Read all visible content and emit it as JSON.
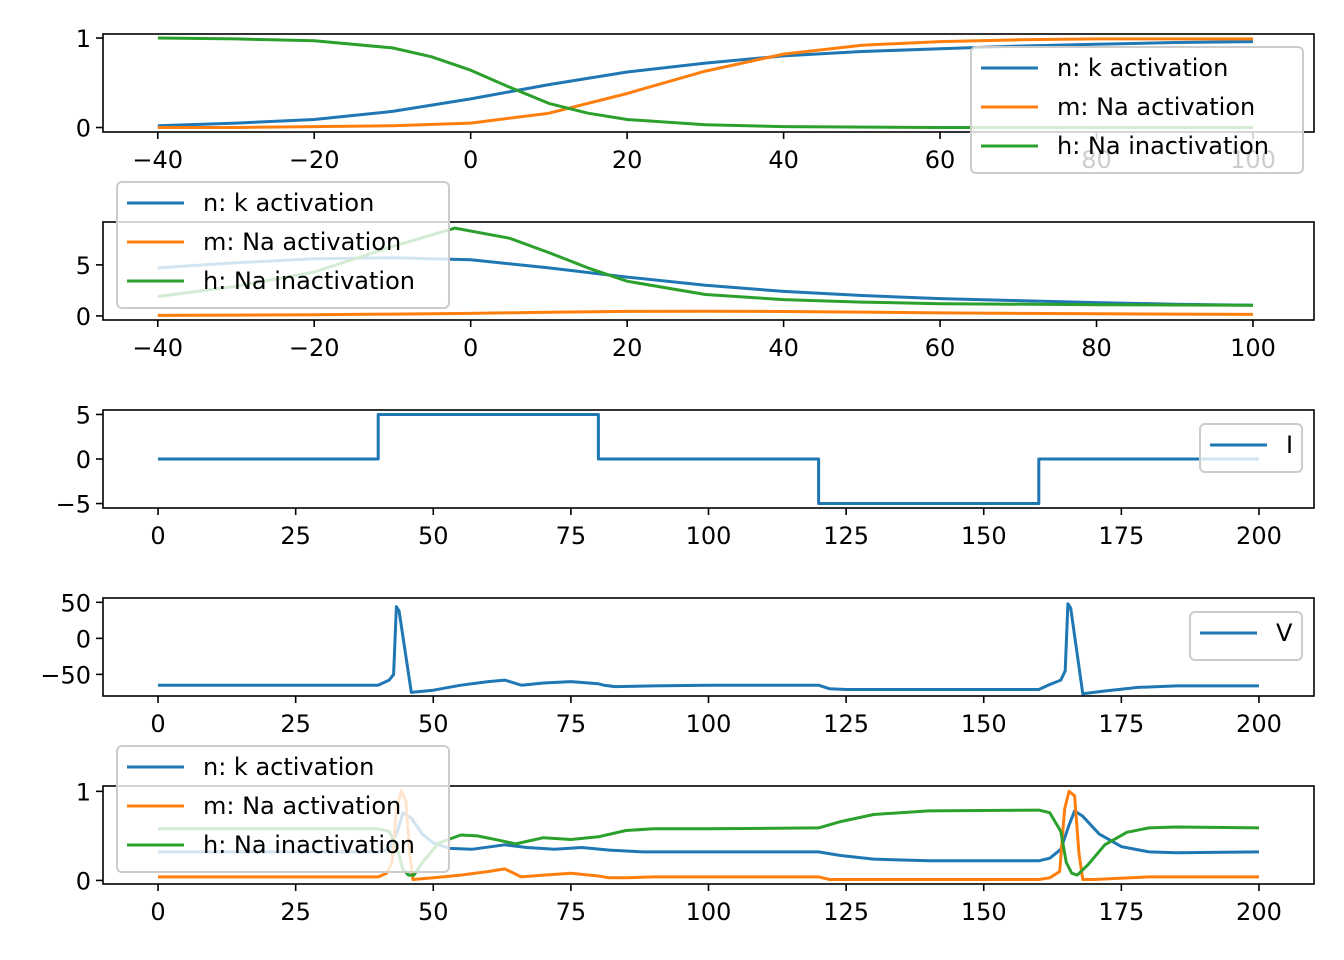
{
  "colors": {
    "n": "#1f77b4",
    "m": "#ff7f0e",
    "h": "#2ca02c",
    "axis": "#000000",
    "legend_border": "#cccccc"
  },
  "chart_data": [
    {
      "id": "steady_state",
      "type": "line",
      "title": "",
      "xlabel": "",
      "ylabel": "",
      "xlim": [
        -47,
        107.8
      ],
      "ylim": [
        -0.05,
        1.045
      ],
      "xticks": [
        -40,
        -20,
        0,
        20,
        40,
        60,
        80,
        100
      ],
      "xtick_labels": [
        "−40",
        "−20",
        "0",
        "20",
        "40",
        "60",
        "80",
        "100"
      ],
      "yticks": [
        0,
        1
      ],
      "ytick_labels": [
        "0",
        "1"
      ],
      "grid": false,
      "legend": {
        "placement": "right",
        "entries": [
          "n: k activation",
          "m: Na activation",
          "h: Na inactivation"
        ]
      },
      "series": [
        {
          "name": "n: k activation",
          "key": "n",
          "x": [
            -40,
            -30,
            -20,
            -10,
            0,
            10,
            20,
            30,
            40,
            50,
            60,
            70,
            80,
            90,
            100
          ],
          "y": [
            0.02,
            0.05,
            0.09,
            0.18,
            0.32,
            0.48,
            0.62,
            0.72,
            0.8,
            0.85,
            0.88,
            0.91,
            0.93,
            0.95,
            0.96
          ]
        },
        {
          "name": "m: Na activation",
          "key": "m",
          "x": [
            -40,
            -30,
            -20,
            -10,
            0,
            10,
            20,
            30,
            40,
            50,
            60,
            70,
            80,
            90,
            100
          ],
          "y": [
            0.0,
            0.0,
            0.01,
            0.02,
            0.05,
            0.16,
            0.38,
            0.63,
            0.82,
            0.92,
            0.96,
            0.98,
            0.99,
            0.99,
            0.99
          ]
        },
        {
          "name": "h: Na inactivation",
          "key": "h",
          "x": [
            -40,
            -30,
            -20,
            -10,
            -5,
            0,
            5,
            10,
            15,
            20,
            30,
            40,
            60,
            80,
            100
          ],
          "y": [
            1.0,
            0.99,
            0.97,
            0.89,
            0.79,
            0.64,
            0.45,
            0.27,
            0.16,
            0.09,
            0.03,
            0.01,
            0.0,
            0.0,
            0.0
          ]
        }
      ]
    },
    {
      "id": "time_constants",
      "type": "line",
      "title": "",
      "xlabel": "",
      "ylabel": "",
      "xlim": [
        -47,
        107.8
      ],
      "ylim": [
        -0.4,
        9.2
      ],
      "xticks": [
        -40,
        -20,
        0,
        20,
        40,
        60,
        80,
        100
      ],
      "xtick_labels": [
        "−40",
        "−20",
        "0",
        "20",
        "40",
        "60",
        "80",
        "100"
      ],
      "yticks": [
        0,
        5
      ],
      "ytick_labels": [
        "0",
        "5"
      ],
      "grid": false,
      "legend": {
        "placement": "upper-left",
        "entries": [
          "n: k activation",
          "m: Na activation",
          "h: Na inactivation"
        ]
      },
      "series": [
        {
          "name": "n: k activation",
          "key": "n",
          "x": [
            -40,
            -30,
            -20,
            -10,
            0,
            10,
            20,
            30,
            40,
            50,
            60,
            70,
            80,
            90,
            100
          ],
          "y": [
            4.7,
            5.2,
            5.6,
            5.7,
            5.5,
            4.7,
            3.8,
            3.0,
            2.4,
            2.0,
            1.7,
            1.5,
            1.3,
            1.15,
            1.05
          ]
        },
        {
          "name": "m: Na activation",
          "key": "m",
          "x": [
            -40,
            -30,
            -20,
            -10,
            0,
            10,
            20,
            30,
            40,
            50,
            60,
            70,
            80,
            90,
            100
          ],
          "y": [
            0.05,
            0.08,
            0.12,
            0.18,
            0.25,
            0.36,
            0.44,
            0.46,
            0.43,
            0.37,
            0.3,
            0.25,
            0.21,
            0.18,
            0.15
          ]
        },
        {
          "name": "h: Na inactivation",
          "key": "h",
          "x": [
            -40,
            -30,
            -20,
            -10,
            -2,
            5,
            10,
            15,
            20,
            30,
            40,
            50,
            60,
            80,
            100
          ],
          "y": [
            1.9,
            2.9,
            4.3,
            6.8,
            8.6,
            7.6,
            6.2,
            4.7,
            3.4,
            2.1,
            1.6,
            1.35,
            1.2,
            1.1,
            1.05
          ]
        }
      ]
    },
    {
      "id": "current",
      "type": "line",
      "title": "",
      "xlabel": "",
      "ylabel": "",
      "xlim": [
        -10,
        210
      ],
      "ylim": [
        -5.5,
        5.5
      ],
      "xticks": [
        0,
        25,
        50,
        75,
        100,
        125,
        150,
        175,
        200
      ],
      "xtick_labels": [
        "0",
        "25",
        "50",
        "75",
        "100",
        "125",
        "150",
        "175",
        "200"
      ],
      "yticks": [
        -5,
        0,
        5
      ],
      "ytick_labels": [
        "−5",
        "0",
        "5"
      ],
      "grid": false,
      "legend": {
        "placement": "right",
        "entries": [
          "I"
        ]
      },
      "series": [
        {
          "name": "I",
          "key": "n",
          "x": [
            0,
            40,
            40,
            80,
            80,
            120,
            120,
            160,
            160,
            200
          ],
          "y": [
            0,
            0,
            5,
            5,
            0,
            0,
            -5,
            -5,
            0,
            0
          ]
        }
      ]
    },
    {
      "id": "voltage",
      "type": "line",
      "title": "",
      "xlabel": "",
      "ylabel": "",
      "xlim": [
        -10,
        210
      ],
      "ylim": [
        -80,
        56
      ],
      "xticks": [
        0,
        25,
        50,
        75,
        100,
        125,
        150,
        175,
        200
      ],
      "xtick_labels": [
        "0",
        "25",
        "50",
        "75",
        "100",
        "125",
        "150",
        "175",
        "200"
      ],
      "yticks": [
        -50,
        0,
        50
      ],
      "ytick_labels": [
        "−50",
        "0",
        "50"
      ],
      "grid": false,
      "legend": {
        "placement": "right",
        "entries": [
          "V"
        ]
      },
      "series": [
        {
          "name": "V",
          "key": "n",
          "x": [
            0,
            40,
            42,
            42.8,
            43.3,
            43.8,
            46,
            50,
            55,
            60,
            63,
            66,
            70,
            75,
            80,
            81,
            83,
            90,
            100,
            120,
            122,
            125,
            140,
            160,
            162,
            164,
            164.8,
            165.3,
            165.8,
            168,
            172,
            178,
            185,
            200
          ],
          "y": [
            -65,
            -65,
            -58,
            -50,
            44,
            38,
            -75,
            -72,
            -65,
            -60,
            -58,
            -65,
            -62,
            -60,
            -63,
            -65,
            -67,
            -66,
            -65,
            -65,
            -70,
            -71,
            -71,
            -71,
            -64,
            -58,
            -45,
            48,
            42,
            -77,
            -73,
            -68,
            -66,
            -66
          ]
        }
      ]
    },
    {
      "id": "gating_timecourse",
      "type": "line",
      "title": "",
      "xlabel": "",
      "ylabel": "",
      "xlim": [
        -10,
        210
      ],
      "ylim": [
        -0.04,
        1.06
      ],
      "xticks": [
        0,
        25,
        50,
        75,
        100,
        125,
        150,
        175,
        200
      ],
      "xtick_labels": [
        "0",
        "25",
        "50",
        "75",
        "100",
        "125",
        "150",
        "175",
        "200"
      ],
      "yticks": [
        0,
        1
      ],
      "ytick_labels": [
        "0",
        "1"
      ],
      "grid": false,
      "legend": {
        "placement": "upper-left",
        "entries": [
          "n: k activation",
          "m: Na activation",
          "h: Na inactivation"
        ]
      },
      "series": [
        {
          "name": "n: k activation",
          "key": "n",
          "x": [
            0,
            40,
            42,
            43.5,
            44.5,
            46,
            48,
            50,
            53,
            57,
            63,
            67,
            72,
            77,
            82,
            88,
            100,
            120,
            124,
            130,
            140,
            160,
            162,
            164,
            165.5,
            166.5,
            168,
            171,
            175,
            180,
            185,
            200
          ],
          "y": [
            0.32,
            0.32,
            0.35,
            0.55,
            0.76,
            0.7,
            0.52,
            0.42,
            0.36,
            0.35,
            0.4,
            0.37,
            0.35,
            0.37,
            0.34,
            0.32,
            0.32,
            0.32,
            0.28,
            0.24,
            0.22,
            0.22,
            0.25,
            0.35,
            0.62,
            0.78,
            0.72,
            0.52,
            0.38,
            0.32,
            0.31,
            0.32
          ]
        },
        {
          "name": "m: Na activation",
          "key": "m",
          "x": [
            0,
            40,
            41.5,
            42.5,
            43.3,
            44.2,
            45,
            45.8,
            46.3,
            50,
            55,
            60,
            63,
            66,
            70,
            75,
            80,
            82,
            85,
            90,
            100,
            120,
            122,
            125,
            160,
            162,
            163.8,
            164.7,
            165.5,
            166.5,
            167.3,
            168,
            170,
            180,
            200
          ],
          "y": [
            0.04,
            0.04,
            0.08,
            0.2,
            0.8,
            1.0,
            0.9,
            0.25,
            0.01,
            0.03,
            0.06,
            0.1,
            0.13,
            0.04,
            0.06,
            0.08,
            0.05,
            0.03,
            0.03,
            0.04,
            0.04,
            0.04,
            0.01,
            0.01,
            0.01,
            0.03,
            0.1,
            0.8,
            1.0,
            0.95,
            0.3,
            0.01,
            0.01,
            0.04,
            0.04
          ]
        },
        {
          "name": "h: Na inactivation",
          "key": "h",
          "x": [
            0,
            40,
            42,
            43.5,
            44.5,
            45.5,
            46.5,
            48,
            51,
            55,
            58,
            62,
            65,
            70,
            75,
            80,
            85,
            90,
            100,
            120,
            124,
            130,
            140,
            160,
            162,
            164,
            165,
            166,
            167,
            169,
            172,
            176,
            180,
            185,
            200
          ],
          "y": [
            0.58,
            0.58,
            0.55,
            0.35,
            0.12,
            0.06,
            0.06,
            0.2,
            0.42,
            0.51,
            0.5,
            0.45,
            0.41,
            0.48,
            0.46,
            0.49,
            0.56,
            0.58,
            0.58,
            0.59,
            0.66,
            0.74,
            0.78,
            0.79,
            0.76,
            0.55,
            0.2,
            0.08,
            0.06,
            0.18,
            0.4,
            0.54,
            0.59,
            0.6,
            0.59
          ]
        }
      ]
    }
  ]
}
